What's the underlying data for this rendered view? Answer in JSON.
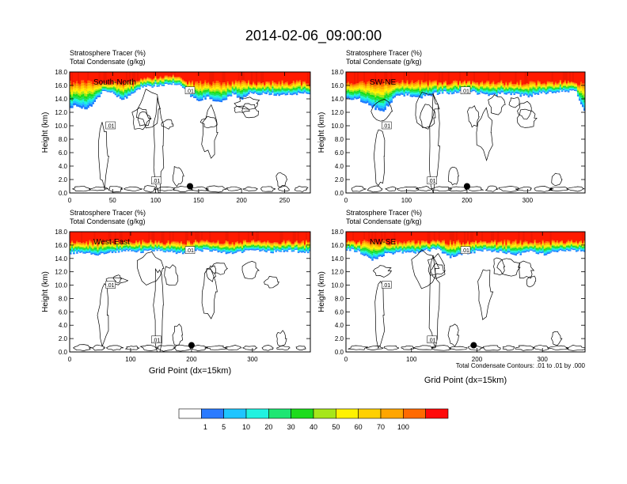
{
  "title": "2014-02-06_09:00:00",
  "subtitle_line1": "Stratosphere Tracer   (%)",
  "subtitle_line2": "Total Condensate   (g/kg)",
  "ylabel": "Height (km)",
  "xlabel": "Grid Point (dx=15km)",
  "contour_note": "Total Condensate Contours: .01 to .01 by .000",
  "contour_label": ".01",
  "colors": {
    "levels": [
      "#ffffff",
      "#1e7bff",
      "#1fc5ff",
      "#1cf5d8",
      "#1ee060",
      "#1adf1a",
      "#a6e61a",
      "#fff200",
      "#ffd400",
      "#ffa800",
      "#ff6e00",
      "#ff1a00"
    ],
    "colorbar": [
      "#ffffff",
      "#2b7bff",
      "#1fc5ff",
      "#21f2e0",
      "#1ee673",
      "#1ddb1d",
      "#a6e61a",
      "#fff200",
      "#ffd000",
      "#ffa500",
      "#ff6a00",
      "#ff0a0a"
    ]
  },
  "colorbar_labels": [
    "1",
    "5",
    "10",
    "20",
    "30",
    "40",
    "50",
    "60",
    "70",
    "100"
  ],
  "chart_data": [
    {
      "type": "heatmap",
      "panel": "South-North",
      "label": "South-North",
      "xlim": [
        0,
        280
      ],
      "ylim": [
        0,
        18
      ],
      "xticks": [
        "0",
        "50",
        "100",
        "150",
        "200",
        "250"
      ],
      "yticks": [
        "0.0",
        "2.0",
        "4.0",
        "6.0",
        "8.0",
        "10.0",
        "12.0",
        "14.0",
        "16.0",
        "18.0"
      ],
      "marker": {
        "x": 140,
        "y": 1.0
      },
      "tracer_bottom_km": [
        [
          0,
          12.8
        ],
        [
          10,
          13.0
        ],
        [
          20,
          12.2
        ],
        [
          30,
          13.8
        ],
        [
          40,
          15.2
        ],
        [
          50,
          14.8
        ],
        [
          60,
          14.0
        ],
        [
          70,
          14.4
        ],
        [
          80,
          15.6
        ],
        [
          90,
          15.8
        ],
        [
          100,
          16.0
        ],
        [
          110,
          16.0
        ],
        [
          120,
          16.2
        ],
        [
          130,
          15.8
        ],
        [
          140,
          14.6
        ],
        [
          150,
          13.8
        ],
        [
          160,
          14.2
        ],
        [
          170,
          13.6
        ],
        [
          180,
          13.8
        ],
        [
          190,
          14.8
        ],
        [
          200,
          14.0
        ],
        [
          210,
          14.8
        ],
        [
          220,
          14.6
        ],
        [
          230,
          14.8
        ],
        [
          240,
          14.6
        ],
        [
          250,
          14.8
        ],
        [
          260,
          14.6
        ],
        [
          270,
          14.8
        ],
        [
          280,
          14.8
        ]
      ]
    },
    {
      "type": "heatmap",
      "panel": "SW-NE",
      "label": "SW-NE",
      "xlim": [
        0,
        395
      ],
      "ylim": [
        0,
        18
      ],
      "xticks": [
        "0",
        "100",
        "200",
        "300"
      ],
      "yticks": [
        "0.0",
        "2.0",
        "4.0",
        "6.0",
        "8.0",
        "10.0",
        "12.0",
        "14.0",
        "16.0",
        "18.0"
      ],
      "marker": {
        "x": 200,
        "y": 1.0
      },
      "tracer_bottom_km": [
        [
          0,
          13.8
        ],
        [
          20,
          14.0
        ],
        [
          40,
          13.0
        ],
        [
          60,
          12.0
        ],
        [
          80,
          14.2
        ],
        [
          100,
          14.6
        ],
        [
          120,
          14.2
        ],
        [
          140,
          14.6
        ],
        [
          160,
          15.0
        ],
        [
          180,
          14.8
        ],
        [
          200,
          15.2
        ],
        [
          220,
          14.8
        ],
        [
          240,
          14.4
        ],
        [
          260,
          14.8
        ],
        [
          280,
          14.6
        ],
        [
          300,
          14.4
        ],
        [
          320,
          14.8
        ],
        [
          340,
          15.0
        ],
        [
          360,
          15.2
        ],
        [
          380,
          15.2
        ],
        [
          395,
          12.0
        ]
      ]
    },
    {
      "type": "heatmap",
      "panel": "West-East",
      "label": "West-East",
      "xlim": [
        0,
        395
      ],
      "ylim": [
        0,
        18
      ],
      "xticks": [
        "0",
        "100",
        "200",
        "300"
      ],
      "yticks": [
        "0.0",
        "2.0",
        "4.0",
        "6.0",
        "8.0",
        "10.0",
        "12.0",
        "14.0",
        "16.0",
        "18.0"
      ],
      "marker": {
        "x": 200,
        "y": 1.0
      },
      "tracer_bottom_km": [
        [
          0,
          14.8
        ],
        [
          20,
          15.0
        ],
        [
          40,
          14.6
        ],
        [
          60,
          14.8
        ],
        [
          80,
          15.0
        ],
        [
          100,
          15.2
        ],
        [
          120,
          15.0
        ],
        [
          140,
          15.2
        ],
        [
          160,
          15.0
        ],
        [
          180,
          14.8
        ],
        [
          200,
          15.0
        ],
        [
          220,
          15.2
        ],
        [
          240,
          15.0
        ],
        [
          260,
          14.8
        ],
        [
          280,
          15.0
        ],
        [
          300,
          15.2
        ],
        [
          320,
          15.0
        ],
        [
          340,
          15.0
        ],
        [
          360,
          15.2
        ],
        [
          380,
          15.0
        ],
        [
          395,
          15.0
        ]
      ]
    },
    {
      "type": "heatmap",
      "panel": "NW-SE",
      "label": "NW-SE",
      "xlim": [
        0,
        365
      ],
      "ylim": [
        0,
        18
      ],
      "xticks": [
        "0",
        "100",
        "200",
        "300"
      ],
      "yticks": [
        "0.0",
        "2.0",
        "4.0",
        "6.0",
        "8.0",
        "10.0",
        "12.0",
        "14.0",
        "16.0",
        "18.0"
      ],
      "marker": {
        "x": 195,
        "y": 1.0
      },
      "tracer_bottom_km": [
        [
          0,
          15.4
        ],
        [
          20,
          15.0
        ],
        [
          40,
          13.8
        ],
        [
          60,
          14.6
        ],
        [
          80,
          15.0
        ],
        [
          100,
          14.8
        ],
        [
          120,
          15.2
        ],
        [
          140,
          15.4
        ],
        [
          160,
          14.2
        ],
        [
          180,
          14.8
        ],
        [
          200,
          15.0
        ],
        [
          220,
          15.2
        ],
        [
          240,
          14.8
        ],
        [
          260,
          14.6
        ],
        [
          280,
          15.0
        ],
        [
          300,
          14.6
        ],
        [
          320,
          15.0
        ],
        [
          340,
          15.2
        ],
        [
          365,
          15.2
        ]
      ]
    }
  ]
}
